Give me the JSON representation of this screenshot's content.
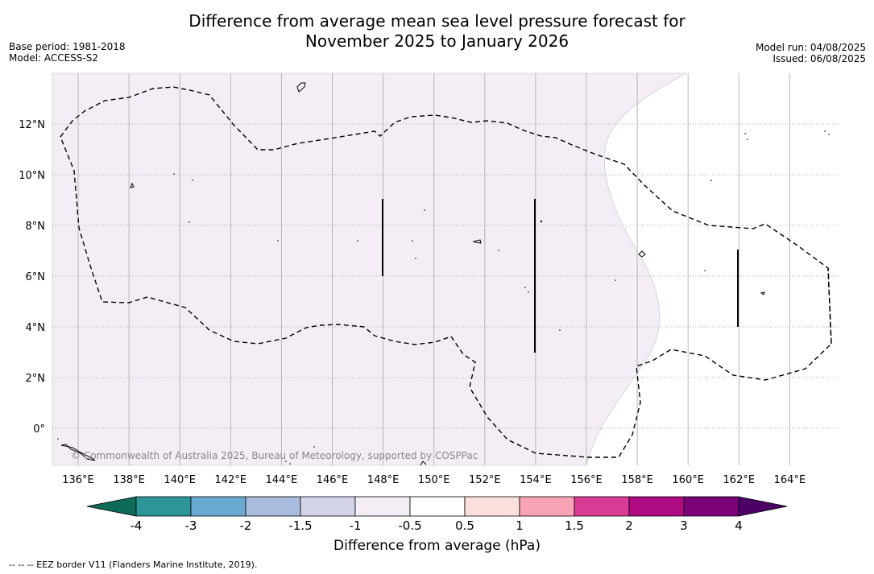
{
  "header": {
    "title_line1": "Difference from average mean sea level pressure forecast for",
    "title_line2": "November 2025 to January 2026",
    "base_period": "Base period: 1981-2018",
    "model": "Model: ACCESS-S2",
    "model_run": "Model run: 04/08/2025",
    "issued": "Issued: 06/08/2025"
  },
  "map": {
    "lon_ticks": [
      "136°E",
      "138°E",
      "140°E",
      "142°E",
      "144°E",
      "146°E",
      "148°E",
      "150°E",
      "152°E",
      "154°E",
      "156°E",
      "158°E",
      "160°E",
      "162°E",
      "164°E"
    ],
    "lat_ticks": [
      "12°N",
      "10°N",
      "8°N",
      "6°N",
      "4°N",
      "2°N",
      "0°"
    ],
    "copyright": "© Commonwealth of Australia 2025, Bureau of Meteorology, supported by COSPPac",
    "fill_color": "#f4edf5",
    "border_style": "dashed",
    "gridlines": true
  },
  "colorbar": {
    "labels": [
      "-4",
      "-3",
      "-2",
      "-1.5",
      "-1",
      "-0.5",
      "0.5",
      "1",
      "1.5",
      "2",
      "3",
      "4"
    ],
    "colors": [
      "#207b79",
      "#2b9598",
      "#6aa9d2",
      "#a9bcdd",
      "#d2d3e7",
      "#f4edf5",
      "#ffffff",
      "#fde0de",
      "#f9a3b6",
      "#da3b95",
      "#ae0a81",
      "#7a0178",
      "#4c0065"
    ],
    "low_extend_color": "#0d6b58",
    "label": "Difference from average (hPa)"
  },
  "footnote": "--  --  -- EEZ border V11 (Flanders Marine Institute, 2019)."
}
